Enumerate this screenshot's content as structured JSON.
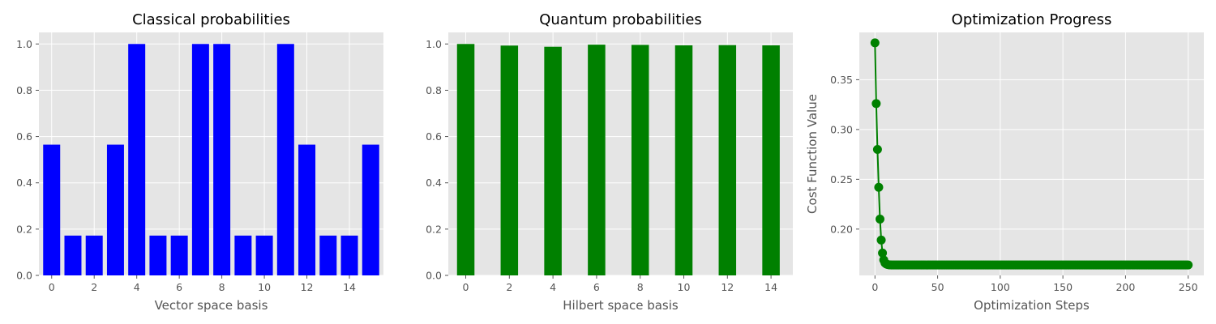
{
  "colors": {
    "panel_bg": "#e5e5e5",
    "grid": "#ffffff",
    "classical_bar": "#0000ff",
    "quantum_bar": "#008000",
    "progress_line": "#008000"
  },
  "chart_data": [
    {
      "type": "bar",
      "title": "Classical probabilities",
      "xlabel": "Vector space basis",
      "ylabel": "",
      "x": [
        0,
        1,
        2,
        3,
        4,
        5,
        6,
        7,
        8,
        9,
        10,
        11,
        12,
        13,
        14,
        15
      ],
      "values": [
        0.565,
        0.172,
        0.172,
        0.565,
        1.0,
        0.172,
        0.172,
        1.0,
        1.0,
        0.172,
        0.172,
        1.0,
        0.565,
        0.172,
        0.172,
        0.565
      ],
      "xlim": [
        -0.6,
        15.6
      ],
      "ylim": [
        0,
        1.05
      ],
      "xticks": [
        0,
        2,
        4,
        6,
        8,
        10,
        12,
        14
      ],
      "yticks": [
        0.0,
        0.2,
        0.4,
        0.6,
        0.8,
        1.0
      ],
      "ytick_labels": [
        "0.0",
        "0.2",
        "0.4",
        "0.6",
        "0.8",
        "1.0"
      ],
      "grid": true
    },
    {
      "type": "bar",
      "title": "Quantum probabilities",
      "xlabel": "Hilbert space basis",
      "ylabel": "",
      "x": [
        0,
        2,
        4,
        6,
        8,
        10,
        12,
        14
      ],
      "values": [
        1.0,
        0.993,
        0.988,
        0.997,
        0.996,
        0.994,
        0.995,
        0.994
      ],
      "xlim": [
        -0.8,
        15.0
      ],
      "ylim": [
        0,
        1.05
      ],
      "xticks": [
        0,
        2,
        4,
        6,
        8,
        10,
        12,
        14
      ],
      "yticks": [
        0.0,
        0.2,
        0.4,
        0.6,
        0.8,
        1.0
      ],
      "ytick_labels": [
        "0.0",
        "0.2",
        "0.4",
        "0.6",
        "0.8",
        "1.0"
      ],
      "grid": true
    },
    {
      "type": "line",
      "title": "Optimization Progress",
      "xlabel": "Optimization Steps",
      "ylabel": "Cost Function Value",
      "x_start": 0,
      "x_end": 250,
      "head_values": [
        0.387,
        0.326,
        0.28,
        0.242,
        0.21,
        0.189,
        0.176,
        0.169,
        0.166,
        0.165,
        0.1645,
        0.1642,
        0.1641
      ],
      "plateau_value": 0.164,
      "xlim": [
        -12.5,
        262.5
      ],
      "ylim": [
        0.1535,
        0.3975
      ],
      "xticks": [
        0,
        50,
        100,
        150,
        200,
        250
      ],
      "yticks": [
        0.2,
        0.25,
        0.3,
        0.35
      ],
      "ytick_labels": [
        "0.20",
        "0.25",
        "0.30",
        "0.35"
      ],
      "marker": "circle",
      "grid": true
    }
  ]
}
